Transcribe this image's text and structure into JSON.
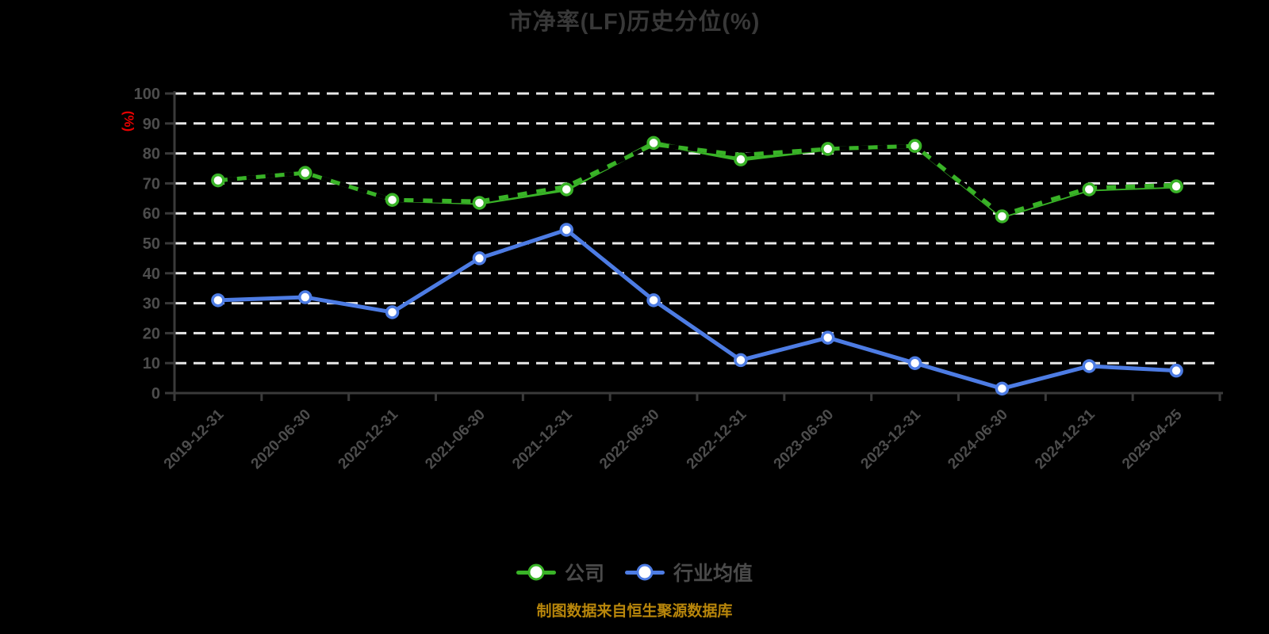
{
  "page": {
    "background": "#000000"
  },
  "chart_data": {
    "type": "line",
    "title": "市净率(LF)历史分位(%)",
    "ylabel": "(%)",
    "ylim": [
      0,
      100
    ],
    "ytick_interval": 10,
    "grid": true,
    "grid_style": "dashed",
    "legend_position": "bottom",
    "source_note": "制图数据来自恒生聚源数据库",
    "categories": [
      "2019-12-31",
      "2020-06-30",
      "2020-12-31",
      "2021-06-30",
      "2021-12-31",
      "2022-06-30",
      "2022-12-31",
      "2023-06-30",
      "2023-12-31",
      "2024-06-30",
      "2024-12-31",
      "2025-04-25"
    ],
    "series": [
      {
        "id": "company",
        "name": "公司",
        "color": "#39b327",
        "line_style": "solid",
        "show_in_legend": true,
        "markers": true,
        "values": [
          71,
          73.5,
          64.5,
          63.5,
          68,
          83.5,
          78,
          81.5,
          82.5,
          59,
          68,
          69
        ]
      },
      {
        "id": "company-dashed-overlay",
        "name": "",
        "color": "#39b327",
        "line_style": "dashed-black-gap",
        "show_in_legend": false,
        "markers": false,
        "values": [
          71,
          73.5,
          64.5,
          64,
          69,
          83,
          79.5,
          81.5,
          82.5,
          59.5,
          68.5,
          69.5
        ]
      },
      {
        "id": "industry-average",
        "name": "行业均值",
        "color": "#4d7ce4",
        "line_style": "solid",
        "show_in_legend": true,
        "markers": true,
        "values": [
          31,
          32,
          27,
          45,
          54.5,
          31,
          11,
          18.5,
          10,
          1.5,
          9,
          7.5
        ]
      }
    ],
    "colors": {
      "background": "#000000",
      "title": "#383838",
      "axis": "#3a3a3a",
      "tick_label": "#4d4d4d",
      "grid": "#e8e8e8",
      "unit": "#e60000",
      "legend_label": "#4a4a4a",
      "source": "#b8860b",
      "marker_fill": "#ffffff"
    }
  }
}
